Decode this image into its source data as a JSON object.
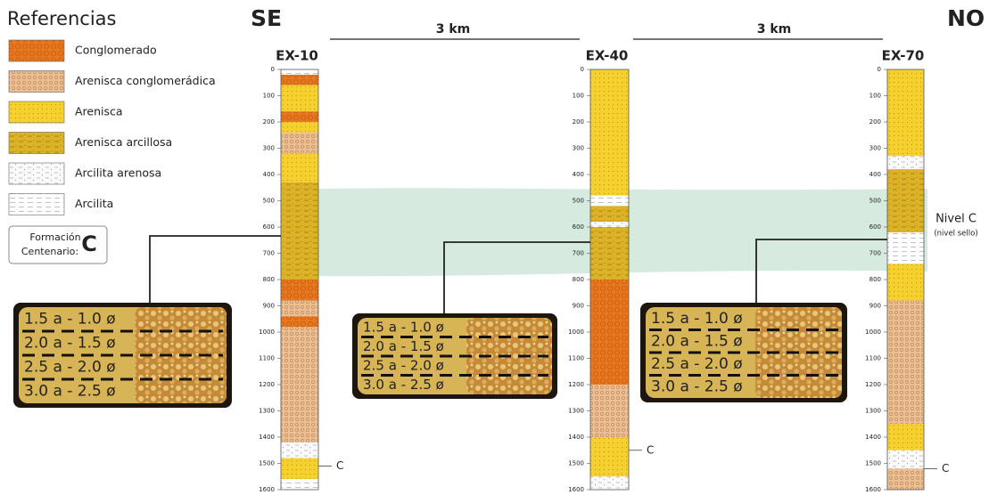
{
  "legend": {
    "title": "Referencias",
    "items": [
      "Conglomerado",
      "Arenisca conglomerádica",
      "Arenisca",
      "Arenisca arcillosa",
      "Arcilita arenosa",
      "Arcilita"
    ],
    "formation_label": [
      "Formación",
      "Centenario:"
    ],
    "formation_symbol": "C"
  },
  "directions": {
    "left": "SE",
    "right": "NO"
  },
  "distances": [
    "3 km",
    "3 km"
  ],
  "wells": [
    {
      "name": "EX-10",
      "depth_ticks": [
        0,
        100,
        200,
        300,
        400,
        500,
        600,
        700,
        800,
        900,
        1000,
        1100,
        1200,
        1300,
        1400,
        1500,
        1600
      ],
      "marker": "C"
    },
    {
      "name": "EX-40",
      "depth_ticks": [
        0,
        100,
        200,
        300,
        400,
        500,
        600,
        700,
        800,
        900,
        1000,
        1100,
        1200,
        1300,
        1400,
        1500,
        1600
      ],
      "marker": "C"
    },
    {
      "name": "EX-70",
      "depth_ticks": [
        0,
        100,
        200,
        300,
        400,
        500,
        600,
        700,
        800,
        900,
        1000,
        1100,
        1200,
        1300,
        1400,
        1500,
        1600
      ],
      "marker": "C"
    }
  ],
  "level": {
    "label": "Nivel C",
    "note": "(nivel sello)"
  },
  "photos": [
    {
      "labels": [
        "1.5 a - 1.0 ø",
        "2.0 a - 1.5 ø",
        "2.5 a - 2.0 ø",
        "3.0 a - 2.5 ø"
      ]
    },
    {
      "labels": [
        "1.5 a - 1.0 ø",
        "2.0 a - 1.5 ø",
        "2.5 a - 2.0 ø",
        "3.0 a - 2.5 ø"
      ]
    },
    {
      "labels": [
        "1.5 a - 1.0 ø",
        "2.0 a - 1.5 ø",
        "2.5 a - 2.0 ø",
        "3.0 a - 2.5 ø"
      ]
    }
  ]
}
